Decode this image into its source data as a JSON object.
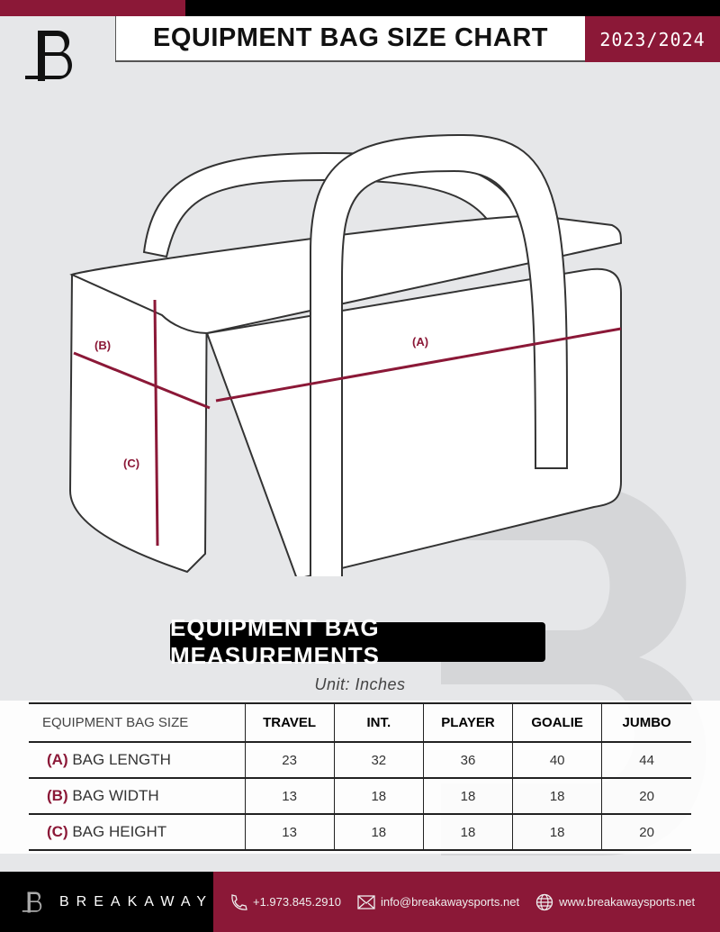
{
  "header": {
    "title": "EQUIPMENT BAG SIZE CHART",
    "season": "2023/2024",
    "brand_logo": "B"
  },
  "diagram": {
    "label_a": "(A)",
    "label_b": "(B)",
    "label_c": "(C)"
  },
  "section_title": "EQUIPMENT BAG MEASUREMENTS",
  "unit": "Unit: Inches",
  "table": {
    "header": "EQUIPMENT BAG SIZE",
    "columns": [
      "TRAVEL",
      "INT.",
      "PLAYER",
      "GOALIE",
      "JUMBO"
    ],
    "rows": [
      {
        "key": "(A)",
        "label": "BAG LENGTH",
        "values": [
          "23",
          "32",
          "36",
          "40",
          "44"
        ]
      },
      {
        "key": "(B)",
        "label": "BAG WIDTH",
        "values": [
          "13",
          "18",
          "18",
          "18",
          "20"
        ]
      },
      {
        "key": "(C)",
        "label": "BAG HEIGHT",
        "values": [
          "13",
          "18",
          "18",
          "18",
          "20"
        ]
      }
    ]
  },
  "footer": {
    "brand": "BREAKAWAY",
    "phone": "+1.973.845.2910",
    "email": "info@breakawaysports.net",
    "website": "www.breakawaysports.net"
  },
  "colors": {
    "accent": "#8b1837",
    "background": "#e6e7e9"
  }
}
